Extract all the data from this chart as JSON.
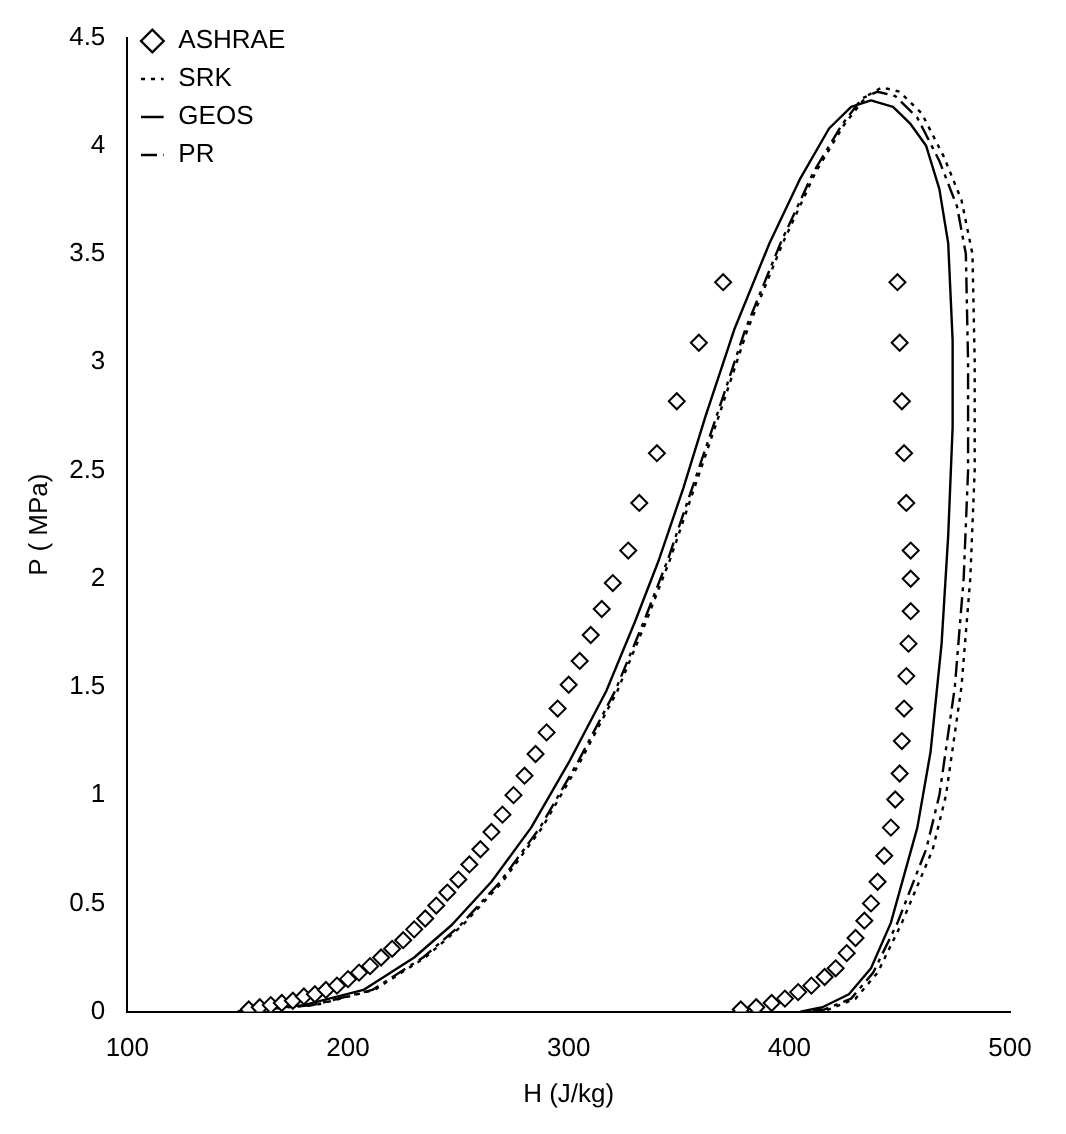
{
  "chart_data": {
    "type": "scatter",
    "xlabel": "H (J/kg)",
    "ylabel": "P ( MPa)",
    "xlim": [
      100,
      500
    ],
    "xticks": [
      100,
      200,
      300,
      400,
      500
    ],
    "ylim": [
      0,
      4.5
    ],
    "yticks": [
      0,
      0.5,
      1,
      1.5,
      2,
      2.5,
      3,
      3.5,
      4,
      4.5
    ],
    "grid": false,
    "legend": "top left",
    "series": [
      {
        "name": "ASHRAE",
        "type": "scatter",
        "marker": "diamond",
        "color": "#000000",
        "x": [
          155,
          160,
          165,
          170,
          175,
          180,
          185,
          190,
          195,
          200,
          205,
          210,
          215,
          220,
          225,
          230,
          235,
          240,
          245,
          250,
          255,
          260,
          265,
          270,
          275,
          280,
          285,
          290,
          295,
          300,
          305,
          310,
          315,
          320,
          327,
          332,
          340,
          349,
          359,
          370,
          378,
          385,
          392,
          398,
          404,
          410,
          416,
          421,
          426,
          430,
          434,
          437,
          440,
          443,
          446,
          448,
          450,
          451,
          452,
          453,
          454,
          455,
          455,
          455,
          453,
          452,
          451,
          450,
          449
        ],
        "values": [
          0.01,
          0.02,
          0.03,
          0.04,
          0.05,
          0.07,
          0.08,
          0.1,
          0.12,
          0.15,
          0.18,
          0.21,
          0.25,
          0.29,
          0.33,
          0.38,
          0.43,
          0.49,
          0.55,
          0.61,
          0.68,
          0.75,
          0.83,
          0.91,
          1.0,
          1.09,
          1.19,
          1.29,
          1.4,
          1.51,
          1.62,
          1.74,
          1.86,
          1.98,
          2.13,
          2.35,
          2.58,
          2.82,
          3.09,
          3.37,
          0.01,
          0.02,
          0.04,
          0.06,
          0.09,
          0.12,
          0.16,
          0.2,
          0.27,
          0.34,
          0.42,
          0.5,
          0.6,
          0.72,
          0.85,
          0.98,
          1.1,
          1.25,
          1.4,
          1.55,
          1.7,
          1.85,
          2.0,
          2.13,
          2.35,
          2.58,
          2.82,
          3.09,
          3.37
        ]
      },
      {
        "name": "SRK",
        "type": "line",
        "line_style": "dotted",
        "marker": "none",
        "color": "#000000",
        "x": [
          150,
          185,
          212,
          235,
          252,
          270,
          288,
          305,
          322,
          335,
          346,
          357,
          368,
          381,
          397,
          412,
          425,
          435,
          442,
          450,
          460,
          470,
          478,
          483,
          484,
          484,
          482,
          478,
          471,
          465,
          451,
          440,
          430,
          418,
          408
        ],
        "values": [
          0,
          0.03,
          0.1,
          0.25,
          0.4,
          0.6,
          0.85,
          1.15,
          1.48,
          1.8,
          2.09,
          2.42,
          2.75,
          3.15,
          3.55,
          3.88,
          4.1,
          4.23,
          4.27,
          4.25,
          4.15,
          3.95,
          3.75,
          3.5,
          3.0,
          2.5,
          2.0,
          1.5,
          1.0,
          0.75,
          0.41,
          0.18,
          0.06,
          0.01,
          0
        ]
      },
      {
        "name": "GEOS",
        "type": "line",
        "line_style": "solid",
        "marker": "none",
        "color": "#000000",
        "x": [
          150,
          180,
          207,
          230,
          247,
          265,
          283,
          300,
          317,
          330,
          341,
          352,
          362,
          375,
          391,
          405,
          418,
          428,
          437,
          447,
          455,
          462,
          468,
          472,
          474,
          474,
          472,
          469,
          464,
          458,
          446,
          437,
          427,
          415,
          405
        ],
        "values": [
          0,
          0.03,
          0.1,
          0.25,
          0.4,
          0.6,
          0.85,
          1.15,
          1.48,
          1.8,
          2.09,
          2.42,
          2.75,
          3.15,
          3.55,
          3.85,
          4.08,
          4.18,
          4.21,
          4.18,
          4.1,
          4.0,
          3.8,
          3.55,
          3.1,
          2.7,
          2.2,
          1.7,
          1.2,
          0.85,
          0.41,
          0.2,
          0.08,
          0.02,
          0
        ]
      },
      {
        "name": "PR",
        "type": "line",
        "line_style": "dashed",
        "marker": "none",
        "color": "#000000",
        "x": [
          150,
          184,
          211,
          234,
          251,
          269,
          287,
          304,
          321,
          334,
          345,
          356,
          367,
          380,
          396,
          411,
          424,
          433,
          440,
          448,
          458,
          468,
          476,
          480,
          481,
          481,
          479,
          475,
          468,
          462,
          449,
          438,
          428,
          416,
          406
        ],
        "values": [
          0,
          0.03,
          0.1,
          0.25,
          0.4,
          0.6,
          0.85,
          1.15,
          1.48,
          1.8,
          2.09,
          2.42,
          2.75,
          3.15,
          3.55,
          3.88,
          4.1,
          4.22,
          4.25,
          4.23,
          4.13,
          3.93,
          3.72,
          3.5,
          3.0,
          2.5,
          2.0,
          1.5,
          1.0,
          0.75,
          0.41,
          0.18,
          0.06,
          0.01,
          0
        ]
      }
    ]
  }
}
